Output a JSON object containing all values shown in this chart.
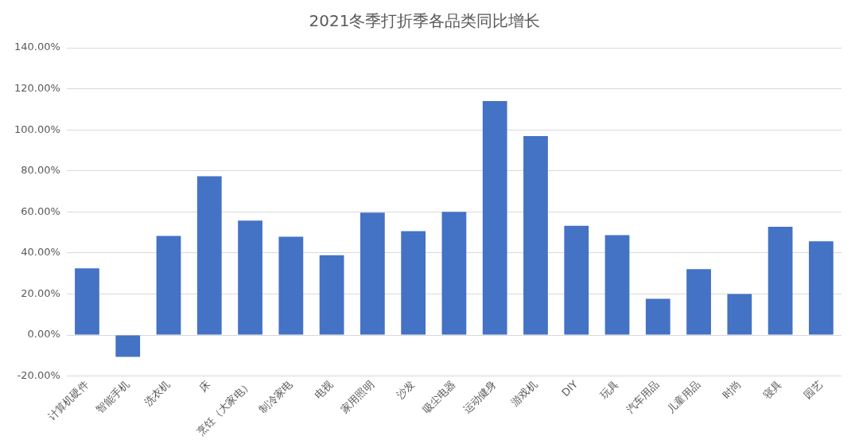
{
  "chart_data": {
    "type": "bar",
    "title": "2021冬季打折季各品类同比增长",
    "categories": [
      "计算机硬件",
      "智能手机",
      "洗衣机",
      "床",
      "烹饪（大家电）",
      "制冷家电",
      "电视",
      "家用照明",
      "沙发",
      "吸尘电器",
      "运动健身",
      "游戏机",
      "DIY",
      "玩具",
      "汽车用品",
      "儿童用品",
      "时尚",
      "寝具",
      "园艺"
    ],
    "values": [
      32.5,
      -10.6,
      48.3,
      77.4,
      55.8,
      47.9,
      38.9,
      59.6,
      50.6,
      60,
      114,
      97,
      53.2,
      48.7,
      17.7,
      32.1,
      20,
      52.8,
      45.7
    ],
    "color": "#4472c4",
    "ylim": [
      -20,
      140
    ],
    "yticks": [
      {
        "value": -20,
        "label": "-20.00%"
      },
      {
        "value": 0,
        "label": "0.00%"
      },
      {
        "value": 20,
        "label": "20.00%"
      },
      {
        "value": 40,
        "label": "40.00%"
      },
      {
        "value": 60,
        "label": "60.00%"
      },
      {
        "value": 80,
        "label": "80.00%"
      },
      {
        "value": 100,
        "label": "100.00%"
      },
      {
        "value": 120,
        "label": "120.00%"
      },
      {
        "value": 140,
        "label": "140.00%"
      }
    ],
    "grid": "y"
  }
}
